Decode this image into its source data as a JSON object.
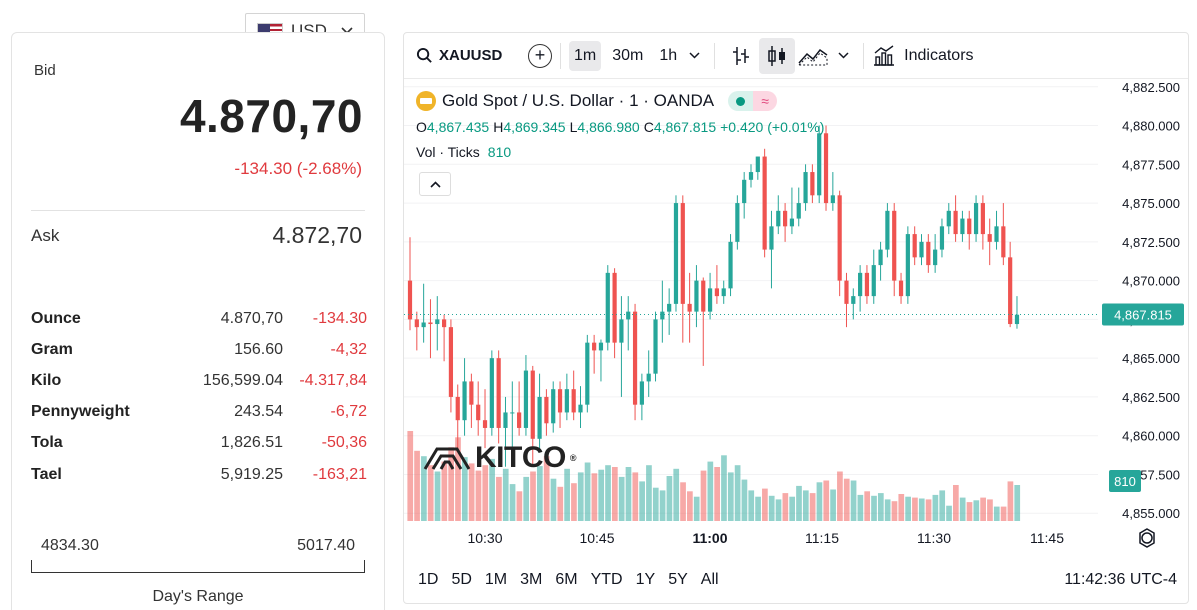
{
  "currency": {
    "code": "USD",
    "flag_icon": "us-flag-icon"
  },
  "quote": {
    "bid_label": "Bid",
    "bid": "4.870,70",
    "change": "-134.30 (-2.68%)",
    "ask_label": "Ask",
    "ask": "4.872,70"
  },
  "units": [
    {
      "name": "Ounce",
      "value": "4.870,70",
      "change": "-134.30"
    },
    {
      "name": "Gram",
      "value": "156.60",
      "change": "-4,32"
    },
    {
      "name": "Kilo",
      "value": "156,599.04",
      "change": "-4.317,84"
    },
    {
      "name": "Pennyweight",
      "value": "243.54",
      "change": "-6,72"
    },
    {
      "name": "Tola",
      "value": "1,826.51",
      "change": "-50,36"
    },
    {
      "name": "Tael",
      "value": "5,919.25",
      "change": "-163,21"
    }
  ],
  "day_range": {
    "low": "4834.30",
    "high": "5017.40",
    "label": "Day's Range"
  },
  "toolbar": {
    "symbol": "XAUUSD",
    "intervals": [
      "1m",
      "30m",
      "1h"
    ],
    "indicators_label": "Indicators"
  },
  "legend": {
    "title": "Gold Spot / U.S. Dollar · 1 · OANDA",
    "o_label": "O",
    "o": "4,867.435",
    "h_label": "H",
    "h": "4,869.345",
    "l_label": "L",
    "l": "4,866.980",
    "c_label": "C",
    "c": "4,867.815",
    "chg": "+0.420 (+0.01%)",
    "vol_label": "Vol · Ticks",
    "vol": "810"
  },
  "watermark": "KITCO",
  "ranges": [
    "1D",
    "5D",
    "1M",
    "3M",
    "6M",
    "YTD",
    "1Y",
    "5Y",
    "All"
  ],
  "clock": "11:42:36 UTC-4",
  "colors": {
    "up": "#26a69a",
    "down": "#ef5350",
    "negative_text": "#e03a3e"
  },
  "chart_data": {
    "type": "candlestick",
    "y_ticks": [
      "4,882.500",
      "4,880.000",
      "4,877.500",
      "4,875.000",
      "4,872.500",
      "4,870.000",
      "4,867.500",
      "4,865.000",
      "4,862.500",
      "4,860.000",
      "4,857.500",
      "4,855.000"
    ],
    "x_ticks": [
      "10:30",
      "10:45",
      "11:00",
      "11:15",
      "11:30",
      "11:45"
    ],
    "ylim": [
      4854.5,
      4883
    ],
    "last_price": "4,867.815",
    "last_volume": "810",
    "candles": [
      [
        4870.0,
        4872.8,
        4866.8,
        4867.5,
        100
      ],
      [
        4867.5,
        4868.0,
        4865.5,
        4867.0,
        78
      ],
      [
        4867.0,
        4869.8,
        4866.0,
        4867.3,
        72
      ],
      [
        4867.3,
        4868.8,
        4865.0,
        4867.2,
        62
      ],
      [
        4867.2,
        4869.0,
        4865.5,
        4867.5,
        55
      ],
      [
        4867.5,
        4867.8,
        4864.8,
        4867.0,
        66
      ],
      [
        4867.0,
        4867.5,
        4861.5,
        4862.5,
        82
      ],
      [
        4862.5,
        4863.3,
        4859.0,
        4861.0,
        93
      ],
      [
        4861.0,
        4865.0,
        4860.0,
        4863.5,
        71
      ],
      [
        4863.5,
        4864.0,
        4860.5,
        4862.0,
        64
      ],
      [
        4862.0,
        4863.5,
        4860.0,
        4861.0,
        56
      ],
      [
        4861.0,
        4863.0,
        4859.2,
        4860.5,
        62
      ],
      [
        4860.5,
        4865.5,
        4860.0,
        4865.0,
        69
      ],
      [
        4865.0,
        4865.5,
        4859.5,
        4860.5,
        49
      ],
      [
        4860.5,
        4862.5,
        4858.0,
        4861.5,
        58
      ],
      [
        4861.5,
        4863.5,
        4858.5,
        4861.5,
        41
      ],
      [
        4861.5,
        4863.5,
        4860.0,
        4860.5,
        33
      ],
      [
        4860.5,
        4865.2,
        4860.0,
        4864.2,
        49
      ],
      [
        4864.2,
        4864.5,
        4858.0,
        4859.8,
        55
      ],
      [
        4859.8,
        4864.0,
        4859.0,
        4862.5,
        61
      ],
      [
        4862.5,
        4863.0,
        4860.0,
        4860.8,
        72
      ],
      [
        4860.8,
        4863.5,
        4860.2,
        4863.0,
        47
      ],
      [
        4863.0,
        4863.5,
        4860.5,
        4861.5,
        38
      ],
      [
        4861.5,
        4864.0,
        4861.0,
        4863.0,
        58
      ],
      [
        4863.0,
        4864.2,
        4861.0,
        4861.5,
        42
      ],
      [
        4861.5,
        4863.2,
        4860.5,
        4862.0,
        54
      ],
      [
        4862.0,
        4866.5,
        4861.5,
        4866.0,
        65
      ],
      [
        4866.0,
        4866.5,
        4864.0,
        4865.5,
        53
      ],
      [
        4865.5,
        4866.2,
        4863.5,
        4866.0,
        57
      ],
      [
        4866.0,
        4871.0,
        4865.5,
        4870.5,
        62
      ],
      [
        4870.5,
        4870.8,
        4865.0,
        4866.0,
        60
      ],
      [
        4866.0,
        4869.0,
        4862.5,
        4867.5,
        49
      ],
      [
        4867.5,
        4869.0,
        4865.5,
        4868.0,
        60
      ],
      [
        4868.0,
        4868.5,
        4861.0,
        4862.0,
        54
      ],
      [
        4862.0,
        4864.0,
        4861.0,
        4863.5,
        44
      ],
      [
        4863.5,
        4865.5,
        4862.5,
        4864.0,
        62
      ],
      [
        4864.0,
        4868.0,
        4863.5,
        4867.5,
        37
      ],
      [
        4867.5,
        4870.0,
        4866.0,
        4868.0,
        34
      ],
      [
        4868.0,
        4869.5,
        4866.5,
        4868.5,
        50
      ],
      [
        4868.5,
        4875.5,
        4868.0,
        4875.0,
        58
      ],
      [
        4875.0,
        4875.5,
        4866.0,
        4868.5,
        43
      ],
      [
        4868.5,
        4870.5,
        4866.0,
        4868.0,
        33
      ],
      [
        4868.0,
        4871.0,
        4867.0,
        4870.0,
        27
      ],
      [
        4870.0,
        4870.2,
        4864.5,
        4868.0,
        56
      ],
      [
        4868.0,
        4870.5,
        4867.5,
        4869.5,
        66
      ],
      [
        4869.5,
        4871.0,
        4868.5,
        4869.0,
        60
      ],
      [
        4869.0,
        4870.0,
        4868.5,
        4869.5,
        73
      ],
      [
        4869.5,
        4873.0,
        4869.0,
        4872.5,
        54
      ],
      [
        4872.5,
        4875.5,
        4872.0,
        4875.0,
        62
      ],
      [
        4875.0,
        4877.0,
        4874.0,
        4876.5,
        46
      ],
      [
        4876.5,
        4877.5,
        4876.0,
        4877.0,
        34
      ],
      [
        4877.0,
        4878.0,
        4876.5,
        4878.0,
        27
      ],
      [
        4878.0,
        4878.5,
        4871.5,
        4872.0,
        36
      ],
      [
        4872.0,
        4874.5,
        4869.5,
        4873.5,
        28
      ],
      [
        4873.5,
        4875.5,
        4873.0,
        4874.5,
        24
      ],
      [
        4874.5,
        4875.0,
        4872.5,
        4873.5,
        31
      ],
      [
        4873.5,
        4876.0,
        4873.0,
        4874.0,
        27
      ],
      [
        4874.0,
        4876.0,
        4873.5,
        4875.0,
        39
      ],
      [
        4875.0,
        4877.5,
        4874.5,
        4877.0,
        34
      ],
      [
        4877.0,
        4877.5,
        4875.0,
        4875.5,
        31
      ],
      [
        4875.5,
        4880.0,
        4875.0,
        4879.5,
        43
      ],
      [
        4879.5,
        4880.0,
        4874.5,
        4875.0,
        45
      ],
      [
        4875.0,
        4877.0,
        4874.5,
        4875.5,
        35
      ],
      [
        4875.5,
        4875.8,
        4869.0,
        4870.0,
        55
      ],
      [
        4870.0,
        4870.5,
        4867.0,
        4868.5,
        47
      ],
      [
        4868.5,
        4869.5,
        4867.5,
        4869.0,
        45
      ],
      [
        4869.0,
        4871.0,
        4868.0,
        4870.5,
        29
      ],
      [
        4870.5,
        4871.0,
        4868.5,
        4869.0,
        33
      ],
      [
        4869.0,
        4872.0,
        4868.5,
        4871.0,
        28
      ],
      [
        4871.0,
        4872.5,
        4870.0,
        4872.0,
        31
      ],
      [
        4872.0,
        4875.0,
        4871.5,
        4874.5,
        24
      ],
      [
        4874.5,
        4875.0,
        4869.0,
        4870.0,
        22
      ],
      [
        4870.0,
        4870.5,
        4868.5,
        4869.0,
        30
      ],
      [
        4869.0,
        4873.5,
        4868.5,
        4873.0,
        27
      ],
      [
        4873.0,
        4873.5,
        4871.0,
        4871.5,
        26
      ],
      [
        4871.5,
        4873.0,
        4871.0,
        4872.5,
        25
      ],
      [
        4872.5,
        4873.0,
        4870.5,
        4871.0,
        24
      ],
      [
        4871.0,
        4873.0,
        4870.5,
        4872.0,
        29
      ],
      [
        4872.0,
        4874.0,
        4871.5,
        4873.5,
        34
      ],
      [
        4873.5,
        4875.0,
        4873.0,
        4874.5,
        17
      ],
      [
        4874.5,
        4875.5,
        4872.5,
        4873.0,
        40
      ],
      [
        4873.0,
        4874.5,
        4872.5,
        4874.0,
        26
      ],
      [
        4874.0,
        4874.5,
        4872.0,
        4873.0,
        21
      ],
      [
        4873.0,
        4875.5,
        4872.5,
        4875.0,
        23
      ],
      [
        4875.0,
        4875.5,
        4872.0,
        4873.0,
        26
      ],
      [
        4873.0,
        4874.0,
        4871.0,
        4872.5,
        24
      ],
      [
        4872.5,
        4874.5,
        4872.0,
        4873.5,
        16
      ],
      [
        4873.5,
        4875.0,
        4871.0,
        4871.5,
        16
      ],
      [
        4871.5,
        4872.5,
        4867.0,
        4867.2,
        44
      ],
      [
        4867.2,
        4869.0,
        4866.9,
        4867.8,
        40
      ]
    ]
  }
}
